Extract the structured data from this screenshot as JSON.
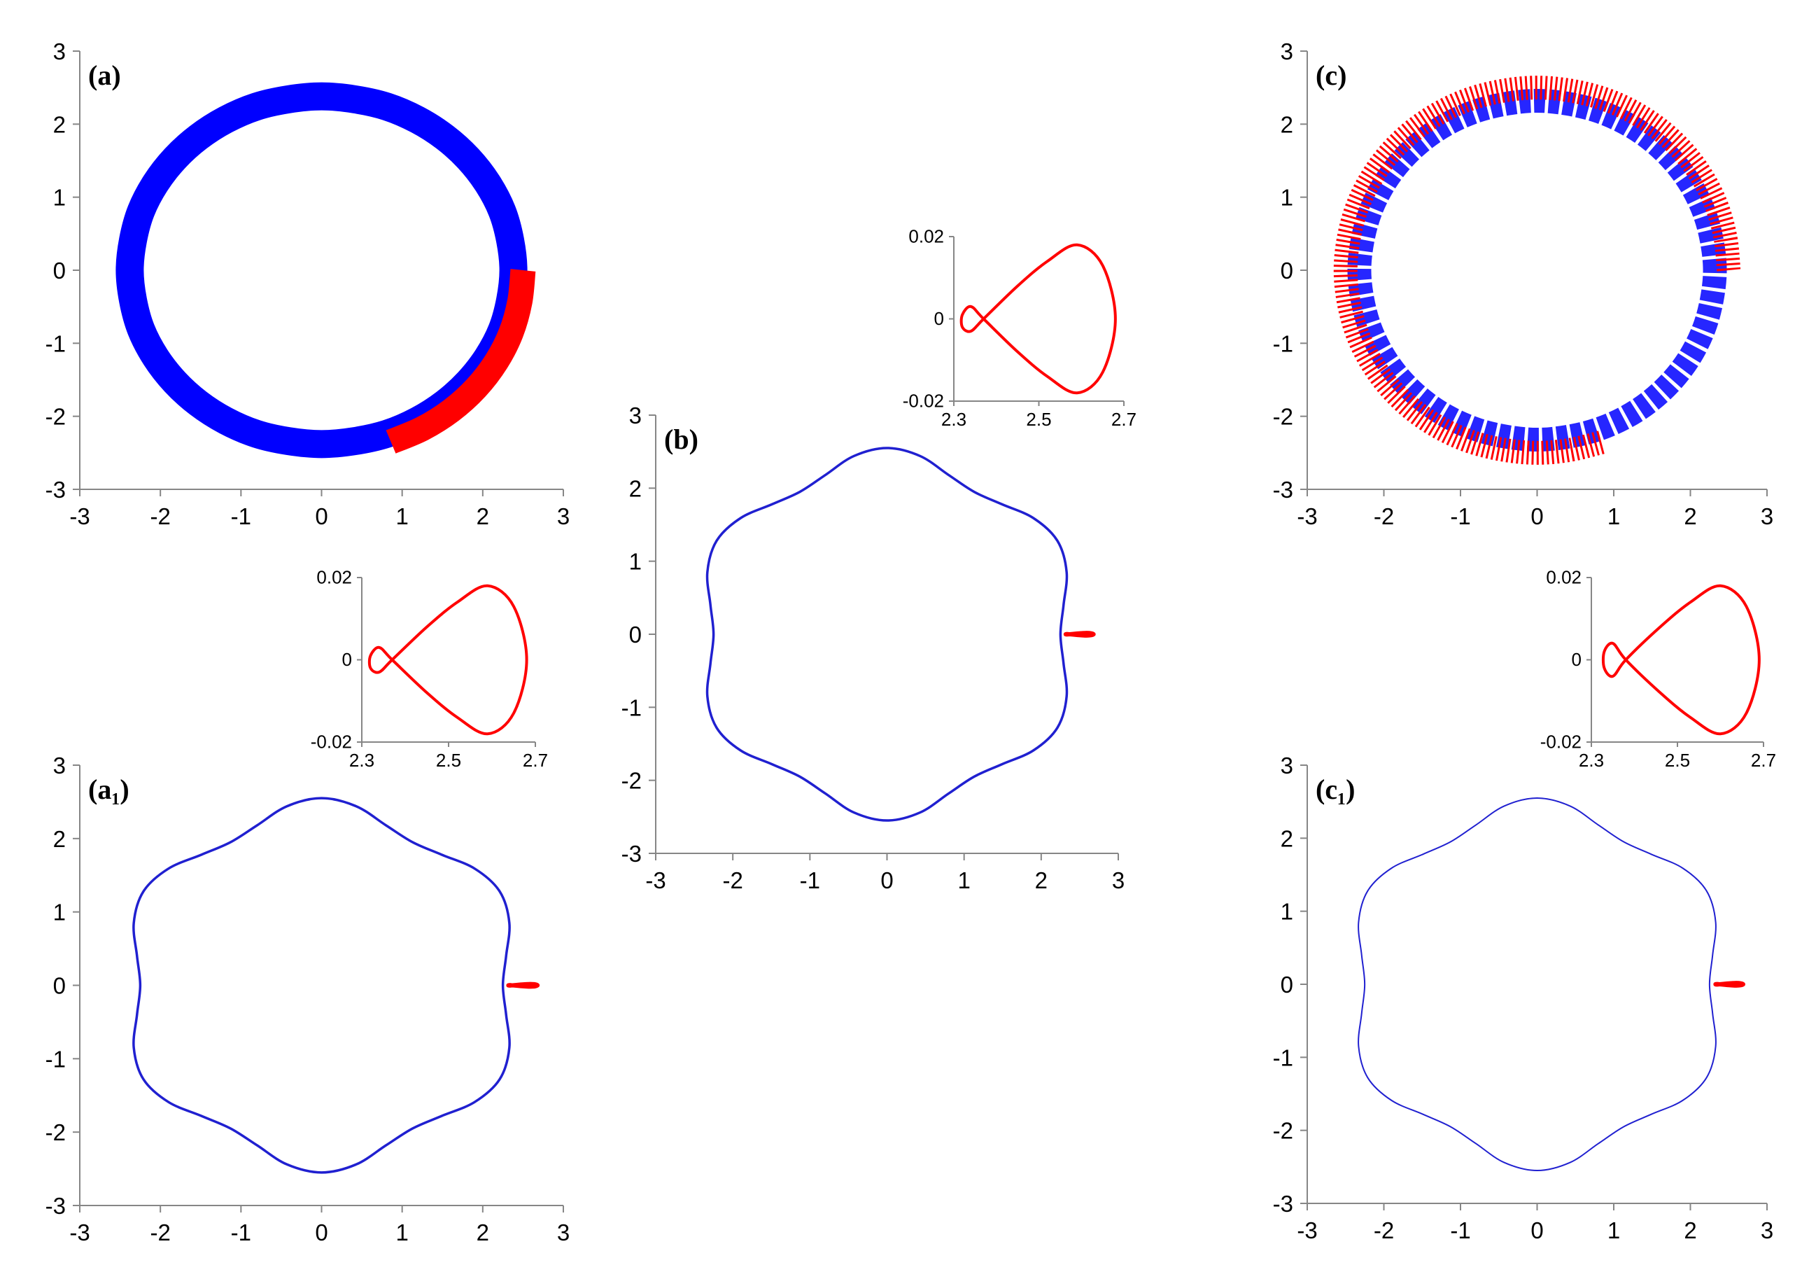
{
  "chart_data": [
    {
      "type": "line",
      "label": "(a)",
      "xlim": [
        -3,
        3
      ],
      "ylim": [
        -3,
        3
      ],
      "xticks": [
        -3,
        -2,
        -1,
        0,
        1,
        2,
        3
      ],
      "yticks": [
        -3,
        -2,
        -1,
        0,
        1,
        2,
        3
      ],
      "series": [
        {
          "color": "#0000ff",
          "x": [
            2.38,
            2.34,
            2.24,
            2.06,
            1.82,
            1.53,
            1.19,
            0.81,
            0.41,
            0,
            -0.41,
            -0.81,
            -1.19,
            -1.53,
            -1.82,
            -2.06,
            -2.24,
            -2.34,
            -2.38,
            -2.34,
            -2.24,
            -2.06,
            -1.82,
            -1.53,
            -1.19,
            -0.81,
            -0.41,
            0,
            0.41,
            0.81,
            1.19,
            1.53,
            1.82,
            2.06,
            2.24,
            2.34,
            2.38
          ],
          "values": [
            0,
            0.41,
            0.81,
            1.19,
            1.53,
            1.82,
            2.06,
            2.24,
            2.34,
            2.38,
            2.34,
            2.24,
            2.06,
            1.82,
            1.53,
            1.19,
            0.81,
            0.41,
            0,
            -0.41,
            -0.81,
            -1.19,
            -1.53,
            -1.82,
            -2.06,
            -2.24,
            -2.34,
            -2.38,
            -2.34,
            -2.24,
            -2.06,
            -1.82,
            -1.53,
            -1.19,
            -0.81,
            -0.41,
            0
          ]
        },
        {
          "color": "#ff0000",
          "x": [
            2.5,
            2.46,
            2.35,
            2.17,
            1.92,
            1.61,
            1.25,
            0.86
          ],
          "values": [
            0,
            -0.43,
            -0.86,
            -1.25,
            -1.61,
            -1.92,
            -2.17,
            -2.35
          ]
        }
      ]
    },
    {
      "type": "line",
      "xlim": [
        2.3,
        2.7
      ],
      "ylim": [
        -0.02,
        0.02
      ],
      "xticks": [
        2.3,
        2.5,
        2.7
      ],
      "yticks": [
        -0.02,
        0,
        0.02
      ],
      "series": [
        {
          "color": "#ff0000",
          "x": [
            2.37,
            2.45,
            2.52,
            2.59,
            2.65,
            2.68,
            2.65,
            2.59,
            2.52,
            2.45,
            2.37,
            2.34,
            2.32,
            2.32,
            2.34,
            2.37
          ],
          "values": [
            0,
            0.008,
            0.014,
            0.018,
            0.013,
            0,
            -0.013,
            -0.018,
            -0.014,
            -0.008,
            0,
            0.003,
            0.001,
            -0.002,
            -0.003,
            0
          ]
        }
      ]
    },
    {
      "type": "line",
      "label": "(a₁)",
      "xlim": [
        -3,
        3
      ],
      "ylim": [
        -3,
        3
      ],
      "xticks": [
        -3,
        -2,
        -1,
        0,
        1,
        2,
        3
      ],
      "yticks": [
        -3,
        -2,
        -1,
        0,
        1,
        2,
        3
      ],
      "series": [
        {
          "color": "#2020d0",
          "x": [
            2.25,
            2.29,
            2.33,
            2.21,
            1.9,
            1.49,
            1.13,
            0.8,
            0.43,
            0,
            -0.43,
            -0.8,
            -1.13,
            -1.49,
            -1.9,
            -2.21,
            -2.33,
            -2.29,
            -2.25,
            -2.29,
            -2.33,
            -2.21,
            -1.9,
            -1.49,
            -1.13,
            -0.8,
            -0.43,
            0,
            0.43,
            0.8,
            1.13,
            1.49,
            1.9,
            2.21,
            2.33,
            2.29,
            2.25
          ],
          "values": [
            0,
            0.4,
            0.85,
            1.28,
            1.59,
            1.78,
            1.95,
            2.18,
            2.44,
            2.55,
            2.44,
            2.18,
            1.95,
            1.78,
            1.59,
            1.28,
            0.85,
            0.4,
            0,
            -0.4,
            -0.85,
            -1.28,
            -1.59,
            -1.78,
            -1.95,
            -2.18,
            -2.44,
            -2.55,
            -2.44,
            -2.18,
            -1.95,
            -1.78,
            -1.59,
            -1.28,
            -0.85,
            -0.4,
            0
          ]
        },
        {
          "color": "#ff0000",
          "x": [
            2.37,
            2.45,
            2.52,
            2.59,
            2.65,
            2.68,
            2.65,
            2.59,
            2.52,
            2.45,
            2.37,
            2.34,
            2.32,
            2.32,
            2.34,
            2.37
          ],
          "values": [
            0,
            0.008,
            0.014,
            0.018,
            0.013,
            0,
            -0.013,
            -0.018,
            -0.014,
            -0.008,
            0,
            0.003,
            0.001,
            -0.002,
            -0.003,
            0
          ]
        }
      ]
    },
    {
      "type": "line",
      "label": "(b)",
      "xlim": [
        -3,
        3
      ],
      "ylim": [
        -3,
        3
      ],
      "xticks": [
        -3,
        -2,
        -1,
        0,
        1,
        2,
        3
      ],
      "yticks": [
        -3,
        -2,
        -1,
        0,
        1,
        2,
        3
      ],
      "series": [
        {
          "color": "#2020d0",
          "x": [
            2.25,
            2.29,
            2.33,
            2.21,
            1.9,
            1.49,
            1.13,
            0.8,
            0.43,
            0,
            -0.43,
            -0.8,
            -1.13,
            -1.49,
            -1.9,
            -2.21,
            -2.33,
            -2.29,
            -2.25,
            -2.29,
            -2.33,
            -2.21,
            -1.9,
            -1.49,
            -1.13,
            -0.8,
            -0.43,
            0,
            0.43,
            0.8,
            1.13,
            1.49,
            1.9,
            2.21,
            2.33,
            2.29,
            2.25
          ],
          "values": [
            0,
            0.4,
            0.85,
            1.28,
            1.59,
            1.78,
            1.95,
            2.18,
            2.44,
            2.55,
            2.44,
            2.18,
            1.95,
            1.78,
            1.59,
            1.28,
            0.85,
            0.4,
            0,
            -0.4,
            -0.85,
            -1.28,
            -1.59,
            -1.78,
            -1.95,
            -2.18,
            -2.44,
            -2.55,
            -2.44,
            -2.18,
            -1.95,
            -1.78,
            -1.59,
            -1.28,
            -0.85,
            -0.4,
            0
          ]
        },
        {
          "color": "#ff0000",
          "x": [
            2.37,
            2.45,
            2.52,
            2.59,
            2.65,
            2.68,
            2.65,
            2.59,
            2.52,
            2.45,
            2.37,
            2.34,
            2.32,
            2.32,
            2.34,
            2.37
          ],
          "values": [
            0,
            0.008,
            0.014,
            0.018,
            0.013,
            0,
            -0.013,
            -0.018,
            -0.014,
            -0.008,
            0,
            0.003,
            0.001,
            -0.002,
            -0.003,
            0
          ]
        }
      ]
    },
    {
      "type": "line",
      "xlim": [
        2.3,
        2.7
      ],
      "ylim": [
        -0.02,
        0.02
      ],
      "xticks": [
        2.3,
        2.5,
        2.7
      ],
      "yticks": [
        -0.02,
        0,
        0.02
      ],
      "series": [
        {
          "color": "#ff0000",
          "x": [
            2.37,
            2.45,
            2.52,
            2.59,
            2.65,
            2.68,
            2.65,
            2.59,
            2.52,
            2.45,
            2.37,
            2.34,
            2.32,
            2.32,
            2.34,
            2.37
          ],
          "values": [
            0,
            0.008,
            0.014,
            0.018,
            0.013,
            0,
            -0.013,
            -0.018,
            -0.014,
            -0.008,
            0,
            0.003,
            0.001,
            -0.002,
            -0.003,
            0
          ]
        }
      ]
    },
    {
      "type": "line",
      "label": "(c)",
      "xlim": [
        -3,
        3
      ],
      "ylim": [
        -3,
        3
      ],
      "xticks": [
        -3,
        -2,
        -1,
        0,
        1,
        2,
        3
      ],
      "yticks": [
        -3,
        -2,
        -1,
        0,
        1,
        2,
        3
      ],
      "series": [
        {
          "color": "#0000ff",
          "x": [
            2.32,
            2.28,
            2.18,
            2.01,
            1.78,
            1.49,
            1.16,
            0.79,
            0.4,
            0,
            -0.4,
            -0.79,
            -1.16,
            -1.49,
            -1.78,
            -2.01,
            -2.18,
            -2.28,
            -2.32,
            -2.28,
            -2.18,
            -2.01,
            -1.78,
            -1.49,
            -1.16,
            -0.79,
            -0.4,
            0,
            0.4,
            0.79,
            1.16,
            1.49,
            1.78,
            2.01,
            2.18,
            2.28,
            2.32
          ],
          "values": [
            0,
            0.4,
            0.79,
            1.16,
            1.49,
            1.78,
            2.01,
            2.18,
            2.28,
            2.32,
            2.28,
            2.18,
            2.01,
            1.78,
            1.49,
            1.16,
            0.79,
            0.4,
            0,
            -0.4,
            -0.79,
            -1.16,
            -1.49,
            -1.78,
            -2.01,
            -2.18,
            -2.28,
            -2.32,
            -2.28,
            -2.18,
            -2.01,
            -1.78,
            -1.49,
            -1.16,
            -0.79,
            -0.4,
            0
          ]
        },
        {
          "color": "#ff0000",
          "x": [
            2.5,
            2.46,
            2.35,
            2.17,
            1.92,
            1.61,
            1.25,
            0.86,
            0.43,
            0,
            -0.43,
            -0.86,
            -1.25,
            -1.61,
            -1.92,
            -2.17,
            -2.35,
            -2.46,
            -2.5,
            -2.46,
            -2.35,
            -2.17,
            -1.92,
            -1.61,
            -1.25,
            -0.86,
            -0.43,
            0,
            0.43,
            0.86
          ],
          "values": [
            0,
            0.43,
            0.86,
            1.25,
            1.61,
            1.92,
            2.17,
            2.35,
            2.46,
            2.5,
            2.46,
            2.35,
            2.17,
            1.92,
            1.61,
            1.25,
            0.86,
            0.43,
            0,
            -0.43,
            -0.86,
            -1.25,
            -1.61,
            -1.92,
            -2.17,
            -2.35,
            -2.46,
            -2.5,
            -2.46,
            -2.35
          ]
        }
      ]
    },
    {
      "type": "line",
      "xlim": [
        2.3,
        2.7
      ],
      "ylim": [
        -0.02,
        0.02
      ],
      "xticks": [
        2.3,
        2.5,
        2.7
      ],
      "yticks": [
        -0.02,
        0,
        0.02
      ],
      "series": [
        {
          "color": "#ff0000",
          "x": [
            2.38,
            2.46,
            2.53,
            2.6,
            2.66,
            2.69,
            2.66,
            2.6,
            2.53,
            2.46,
            2.38,
            2.35,
            2.33,
            2.33,
            2.35,
            2.38
          ],
          "values": [
            0,
            0.008,
            0.014,
            0.018,
            0.013,
            0,
            -0.013,
            -0.018,
            -0.014,
            -0.008,
            0,
            0.004,
            0.002,
            -0.002,
            -0.004,
            0
          ]
        }
      ]
    },
    {
      "type": "line",
      "label": "(c₁)",
      "xlim": [
        -3,
        3
      ],
      "ylim": [
        -3,
        3
      ],
      "xticks": [
        -3,
        -2,
        -1,
        0,
        1,
        2,
        3
      ],
      "yticks": [
        -3,
        -2,
        -1,
        0,
        1,
        2,
        3
      ],
      "series": [
        {
          "color": "#2020d0",
          "x": [
            2.25,
            2.29,
            2.33,
            2.21,
            1.9,
            1.49,
            1.13,
            0.8,
            0.43,
            0,
            -0.43,
            -0.8,
            -1.13,
            -1.49,
            -1.9,
            -2.21,
            -2.33,
            -2.29,
            -2.25,
            -2.29,
            -2.33,
            -2.21,
            -1.9,
            -1.49,
            -1.13,
            -0.8,
            -0.43,
            0,
            0.43,
            0.8,
            1.13,
            1.49,
            1.9,
            2.21,
            2.33,
            2.29,
            2.25
          ],
          "values": [
            0,
            0.4,
            0.85,
            1.28,
            1.59,
            1.78,
            1.95,
            2.18,
            2.44,
            2.55,
            2.44,
            2.18,
            1.95,
            1.78,
            1.59,
            1.28,
            0.85,
            0.4,
            0,
            -0.4,
            -0.85,
            -1.28,
            -1.59,
            -1.78,
            -1.95,
            -2.18,
            -2.44,
            -2.55,
            -2.44,
            -2.18,
            -1.95,
            -1.78,
            -1.59,
            -1.28,
            -0.85,
            -0.4,
            0
          ]
        },
        {
          "color": "#ff0000",
          "x": [
            2.38,
            2.46,
            2.53,
            2.6,
            2.66,
            2.69,
            2.66,
            2.6,
            2.53,
            2.46,
            2.38,
            2.35,
            2.33,
            2.33,
            2.35,
            2.38
          ],
          "values": [
            0,
            0.008,
            0.014,
            0.018,
            0.013,
            0,
            -0.013,
            -0.018,
            -0.014,
            -0.008,
            0,
            0.004,
            0.002,
            -0.002,
            -0.004,
            0
          ]
        }
      ]
    }
  ]
}
